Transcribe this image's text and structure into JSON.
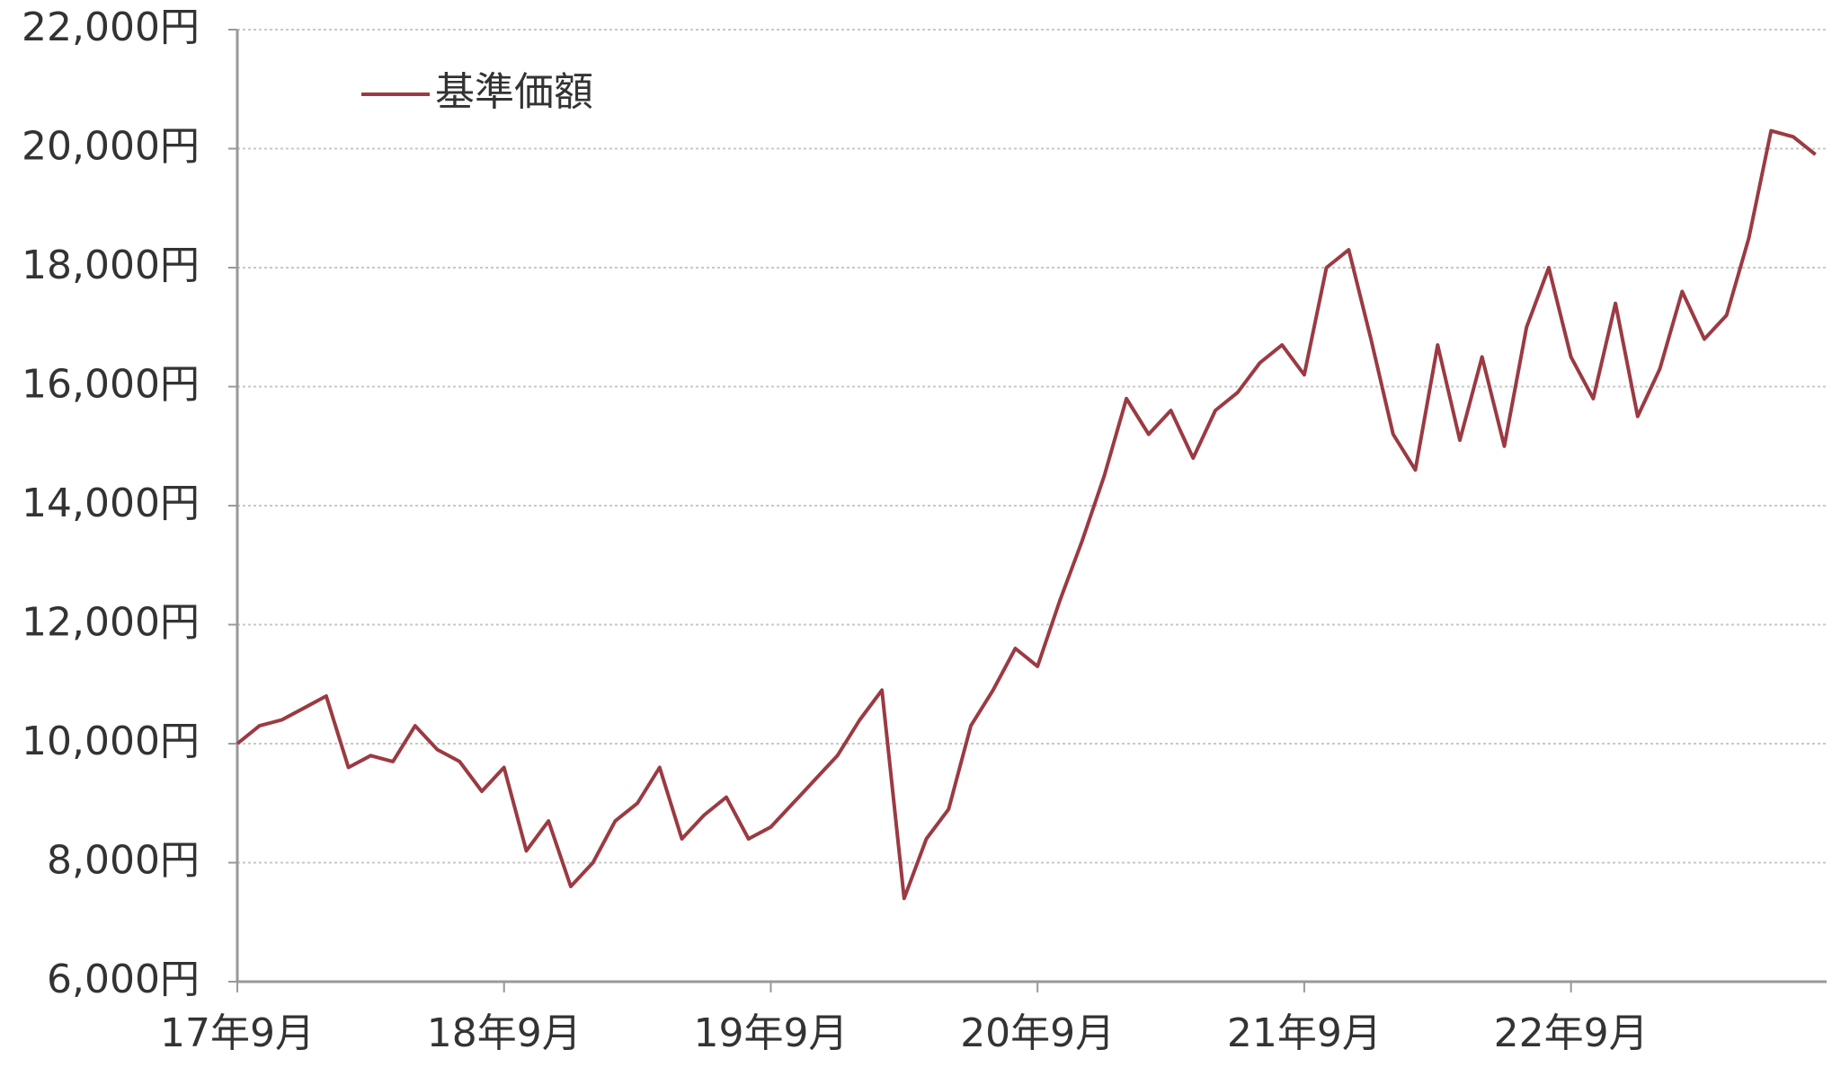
{
  "chart_data": {
    "type": "line",
    "categories": [
      "17年9月",
      null,
      null,
      null,
      null,
      null,
      null,
      null,
      null,
      null,
      null,
      null,
      "18年9月",
      null,
      null,
      null,
      null,
      null,
      null,
      null,
      null,
      null,
      null,
      null,
      "19年9月",
      null,
      null,
      null,
      null,
      null,
      null,
      null,
      null,
      null,
      null,
      null,
      "20年9月",
      null,
      null,
      null,
      null,
      null,
      null,
      null,
      null,
      null,
      null,
      null,
      "21年9月",
      null,
      null,
      null,
      null,
      null,
      null,
      null,
      null,
      null,
      null,
      null,
      "22年9月",
      null,
      null,
      null,
      null,
      null,
      null,
      null,
      null,
      null,
      null,
      null
    ],
    "series": [
      {
        "name": "基準価額",
        "color": "#9b3a42",
        "values": [
          10000,
          10300,
          10400,
          10600,
          10800,
          9600,
          9800,
          9700,
          10300,
          9900,
          9700,
          9200,
          9600,
          8200,
          8700,
          7600,
          8000,
          8700,
          9000,
          9600,
          8400,
          8800,
          9100,
          8400,
          8600,
          9000,
          9400,
          9800,
          10400,
          10900,
          7400,
          8400,
          8900,
          10300,
          10900,
          11600,
          11300,
          12400,
          13400,
          14500,
          15800,
          15200,
          15600,
          14800,
          15600,
          15900,
          16400,
          16700,
          16200,
          18000,
          18300,
          16800,
          15200,
          14600,
          16700,
          15100,
          16500,
          15000,
          17000,
          18000,
          16500,
          15800,
          17400,
          15500,
          16300,
          17600,
          16800,
          17200,
          18500,
          20300,
          20200,
          19900
        ]
      }
    ],
    "ylim": [
      6000,
      22000
    ],
    "yticks": [
      {
        "value": 6000,
        "label": "6,000円"
      },
      {
        "value": 8000,
        "label": "8,000円"
      },
      {
        "value": 10000,
        "label": "10,000円"
      },
      {
        "value": 12000,
        "label": "12,000円"
      },
      {
        "value": 14000,
        "label": "14,000円"
      },
      {
        "value": 16000,
        "label": "16,000円"
      },
      {
        "value": 18000,
        "label": "18,000円"
      },
      {
        "value": 20000,
        "label": "20,000円"
      },
      {
        "value": 22000,
        "label": "22,000円"
      }
    ],
    "grid": true,
    "legend": "top-left"
  }
}
